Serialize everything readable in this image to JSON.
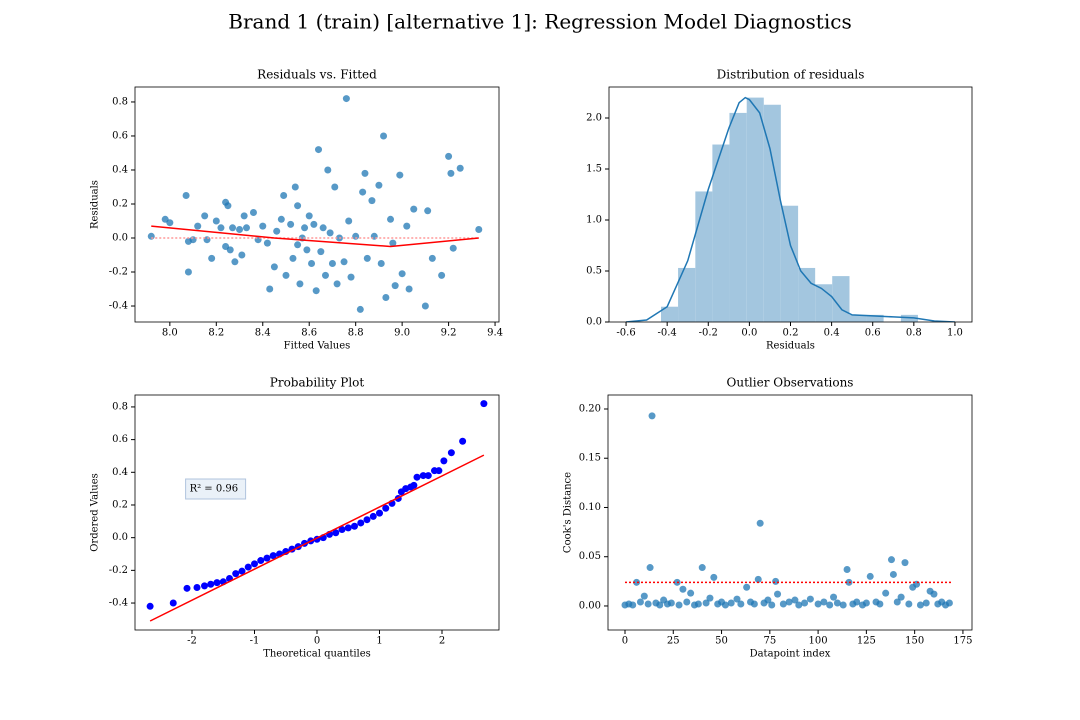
{
  "title": "Brand 1 (train) [alternative 1]: Regression Model Diagnostics",
  "chart_data": [
    {
      "type": "scatter",
      "title": "Residuals vs. Fitted",
      "xlabel": "Fitted Values",
      "ylabel": "Residuals",
      "xlim": [
        7.85,
        9.417
      ],
      "ylim": [
        -0.494,
        0.888
      ],
      "xticks": [
        {
          "value": 8,
          "label": "8.0"
        },
        8.2,
        8.4,
        8.6,
        8.8,
        {
          "value": 9,
          "label": "9.0"
        },
        9.2,
        9.4
      ],
      "yticks": [
        -0.4,
        -0.2,
        {
          "value": 0,
          "label": "0.0"
        },
        0.2,
        0.4,
        0.6,
        0.8
      ],
      "series": [
        {
          "type": "scatter",
          "color": "#1f77b4",
          "x": [
            7.92,
            7.98,
            8.0,
            8.07,
            8.08,
            8.08,
            8.1,
            8.12,
            8.15,
            8.16,
            8.18,
            8.2,
            8.22,
            8.24,
            8.24,
            8.25,
            8.26,
            8.27,
            8.28,
            8.3,
            8.31,
            8.32,
            8.33,
            8.36,
            8.38,
            8.4,
            8.42,
            8.43,
            8.45,
            8.46,
            8.48,
            8.49,
            8.5,
            8.52,
            8.53,
            8.54,
            8.55,
            8.55,
            8.56,
            8.57,
            8.58,
            8.59,
            8.6,
            8.61,
            8.62,
            8.63,
            8.64,
            8.65,
            8.66,
            8.67,
            8.68,
            8.69,
            8.7,
            8.71,
            8.72,
            8.73,
            8.75,
            8.76,
            8.77,
            8.78,
            8.8,
            8.82,
            8.83,
            8.84,
            8.85,
            8.87,
            8.88,
            8.9,
            8.91,
            8.92,
            8.93,
            8.95,
            8.96,
            8.97,
            8.99,
            9.0,
            9.02,
            9.03,
            9.05,
            9.1,
            9.11,
            9.13,
            9.17,
            9.2,
            9.21,
            9.22,
            9.25,
            9.33
          ],
          "values": [
            0.01,
            0.11,
            0.09,
            0.25,
            -0.02,
            -0.2,
            -0.01,
            0.07,
            0.13,
            -0.01,
            -0.12,
            0.1,
            0.06,
            0.21,
            -0.05,
            0.19,
            -0.07,
            0.06,
            -0.14,
            0.05,
            -0.1,
            0.13,
            0.06,
            0.15,
            -0.01,
            0.07,
            -0.03,
            -0.3,
            -0.17,
            0.04,
            0.11,
            0.25,
            -0.22,
            0.08,
            -0.12,
            0.3,
            0.19,
            -0.04,
            -0.27,
            0.0,
            0.06,
            -0.07,
            0.13,
            -0.15,
            0.08,
            -0.31,
            0.52,
            -0.08,
            0.06,
            -0.22,
            0.4,
            0.03,
            -0.15,
            0.3,
            -0.27,
            0.0,
            -0.14,
            0.82,
            0.1,
            -0.23,
            0.01,
            -0.42,
            0.27,
            0.38,
            -0.12,
            0.22,
            0.01,
            0.31,
            -0.15,
            0.6,
            -0.35,
            0.11,
            -0.03,
            -0.28,
            0.37,
            -0.21,
            0.07,
            -0.3,
            0.17,
            -0.4,
            0.16,
            -0.12,
            -0.22,
            0.48,
            0.38,
            -0.06,
            0.41,
            0.05
          ]
        },
        {
          "type": "line",
          "color": "#ff9999",
          "linestyle": "dotted",
          "x": [
            7.92,
            9.33
          ],
          "values": [
            0,
            0
          ]
        },
        {
          "type": "line",
          "color": "#ff0000",
          "x": [
            7.92,
            8.45,
            8.95,
            9.33
          ],
          "values": [
            0.07,
            0.0,
            -0.05,
            0.0
          ]
        }
      ]
    },
    {
      "type": "histogram",
      "title": "Distribution of residuals",
      "xlabel": "Residuals",
      "xlim": [
        -0.683,
        1.083
      ],
      "ylim": [
        0,
        2.304
      ],
      "xticks": [
        -0.6,
        -0.4,
        -0.2,
        {
          "value": 0,
          "label": "0.0"
        },
        0.2,
        0.4,
        0.6,
        0.8,
        {
          "value": 1,
          "label": "1.0"
        }
      ],
      "yticks": [
        {
          "value": 0,
          "label": "0.0"
        },
        0.5,
        {
          "value": 1,
          "label": "1.0"
        },
        1.5,
        {
          "value": 2,
          "label": "2.0"
        }
      ],
      "bins": [
        -0.43,
        -0.347,
        -0.263,
        -0.18,
        -0.097,
        -0.013,
        0.07,
        0.153,
        0.237,
        0.32,
        0.403,
        0.487,
        0.57,
        0.653,
        0.737,
        0.82
      ],
      "values": [
        0.15,
        0.53,
        1.28,
        1.74,
        2.05,
        2.2,
        2.13,
        1.14,
        0.53,
        0.37,
        0.45,
        0.07,
        0.07,
        0,
        0.07
      ],
      "color": "#a3c6df",
      "series": [
        {
          "type": "line",
          "color": "#1f77b4",
          "x": [
            -0.6,
            -0.5,
            -0.4,
            -0.3,
            -0.2,
            -0.1,
            -0.05,
            -0.02,
            0.0,
            0.05,
            0.1,
            0.15,
            0.2,
            0.25,
            0.3,
            0.35,
            0.4,
            0.45,
            0.5,
            0.6,
            0.7,
            0.8,
            0.9,
            1.0
          ],
          "values": [
            0.0,
            0.02,
            0.15,
            0.6,
            1.3,
            1.9,
            2.15,
            2.2,
            2.18,
            2.05,
            1.7,
            1.2,
            0.75,
            0.5,
            0.38,
            0.33,
            0.25,
            0.12,
            0.07,
            0.06,
            0.05,
            0.04,
            0.01,
            0.0
          ]
        }
      ]
    },
    {
      "type": "scatter",
      "title": "Probability Plot",
      "xlabel": "Theoretical quantiles",
      "ylabel": "Ordered Values",
      "annotation": "R² = 0.96",
      "xlim": [
        -2.912,
        2.912
      ],
      "ylim": [
        -0.565,
        0.873
      ],
      "xticks": [
        -2,
        -1,
        0,
        1,
        2
      ],
      "yticks": [
        -0.4,
        -0.2,
        {
          "value": 0,
          "label": "0.0"
        },
        0.2,
        0.4,
        0.6,
        0.8
      ],
      "series": [
        {
          "type": "scatter",
          "color": "#0000ff",
          "opacity": 1,
          "x": [
            -2.67,
            -2.3,
            -2.08,
            -1.92,
            -1.8,
            -1.7,
            -1.6,
            -1.5,
            -1.4,
            -1.3,
            -1.2,
            -1.1,
            -1.0,
            -0.9,
            -0.8,
            -0.7,
            -0.6,
            -0.5,
            -0.4,
            -0.3,
            -0.2,
            -0.1,
            0,
            0.1,
            0.2,
            0.3,
            0.4,
            0.5,
            0.6,
            0.7,
            0.8,
            0.9,
            1.0,
            1.1,
            1.2,
            1.3,
            1.35,
            1.42,
            1.5,
            1.55,
            1.6,
            1.7,
            1.78,
            1.88,
            1.95,
            2.03,
            2.15,
            2.33,
            2.67
          ],
          "values": [
            -0.42,
            -0.4,
            -0.31,
            -0.305,
            -0.295,
            -0.285,
            -0.275,
            -0.27,
            -0.25,
            -0.22,
            -0.205,
            -0.18,
            -0.16,
            -0.14,
            -0.125,
            -0.11,
            -0.1,
            -0.085,
            -0.07,
            -0.055,
            -0.035,
            -0.02,
            -0.01,
            0.0,
            0.02,
            0.03,
            0.05,
            0.06,
            0.07,
            0.09,
            0.11,
            0.13,
            0.15,
            0.18,
            0.21,
            0.24,
            0.28,
            0.3,
            0.31,
            0.32,
            0.37,
            0.38,
            0.38,
            0.41,
            0.41,
            0.47,
            0.52,
            0.59,
            0.82
          ]
        },
        {
          "type": "line",
          "color": "#ff0000",
          "x": [
            -2.67,
            2.67
          ],
          "values": [
            -0.51,
            0.505
          ]
        }
      ]
    },
    {
      "type": "scatter",
      "title": "Outlier Observations",
      "xlabel": "Datapoint index",
      "ylabel": "Cook's Distance",
      "xlim": [
        -8.8,
        179.7
      ],
      "ylim": [
        -0.0244,
        0.2142
      ],
      "xticks": [
        0,
        25,
        50,
        75,
        100,
        125,
        150,
        175
      ],
      "yticks": [
        {
          "value": 0,
          "label": "0.00"
        },
        {
          "value": 0.05,
          "label": "0.05"
        },
        {
          "value": 0.1,
          "label": "0.10"
        },
        {
          "value": 0.15,
          "label": "0.15"
        },
        {
          "value": 0.2,
          "label": "0.20"
        }
      ],
      "series": [
        {
          "type": "scatter",
          "color": "#1f77b4",
          "x": [
            0,
            2,
            4,
            6,
            8,
            10,
            12,
            13,
            14,
            16,
            18,
            20,
            22,
            24,
            27,
            28,
            30,
            32,
            34,
            36,
            38,
            40,
            42,
            44,
            46,
            48,
            50,
            52,
            55,
            58,
            60,
            63,
            65,
            67,
            69,
            70,
            72,
            74,
            76,
            78,
            79,
            82,
            85,
            88,
            90,
            93,
            96,
            100,
            103,
            106,
            108,
            110,
            113,
            115,
            116,
            118,
            120,
            123,
            125,
            127,
            130,
            132,
            135,
            138,
            139,
            141,
            143,
            145,
            147,
            149,
            151,
            153,
            156,
            158,
            160,
            162,
            164,
            166,
            168
          ],
          "values": [
            0.001,
            0.002,
            0.001,
            0.024,
            0.004,
            0.01,
            0.002,
            0.039,
            0.193,
            0.003,
            0.001,
            0.006,
            0.002,
            0.003,
            0.024,
            0.001,
            0.017,
            0.004,
            0.013,
            0.001,
            0.002,
            0.039,
            0.003,
            0.008,
            0.029,
            0.002,
            0.004,
            0.001,
            0.003,
            0.007,
            0.002,
            0.019,
            0.004,
            0.002,
            0.027,
            0.084,
            0.003,
            0.006,
            0.001,
            0.025,
            0.012,
            0.002,
            0.004,
            0.006,
            0.001,
            0.003,
            0.007,
            0.002,
            0.004,
            0.001,
            0.009,
            0.003,
            0.001,
            0.037,
            0.024,
            0.002,
            0.004,
            0.001,
            0.003,
            0.03,
            0.004,
            0.002,
            0.013,
            0.047,
            0.032,
            0.004,
            0.009,
            0.044,
            0.002,
            0.019,
            0.022,
            0.001,
            0.003,
            0.015,
            0.012,
            0.002,
            0.004,
            0.001,
            0.003
          ]
        },
        {
          "type": "line",
          "color": "#ff0000",
          "linestyle": "dotted",
          "x": [
            0,
            169
          ],
          "values": [
            0.024,
            0.024
          ]
        }
      ]
    }
  ]
}
